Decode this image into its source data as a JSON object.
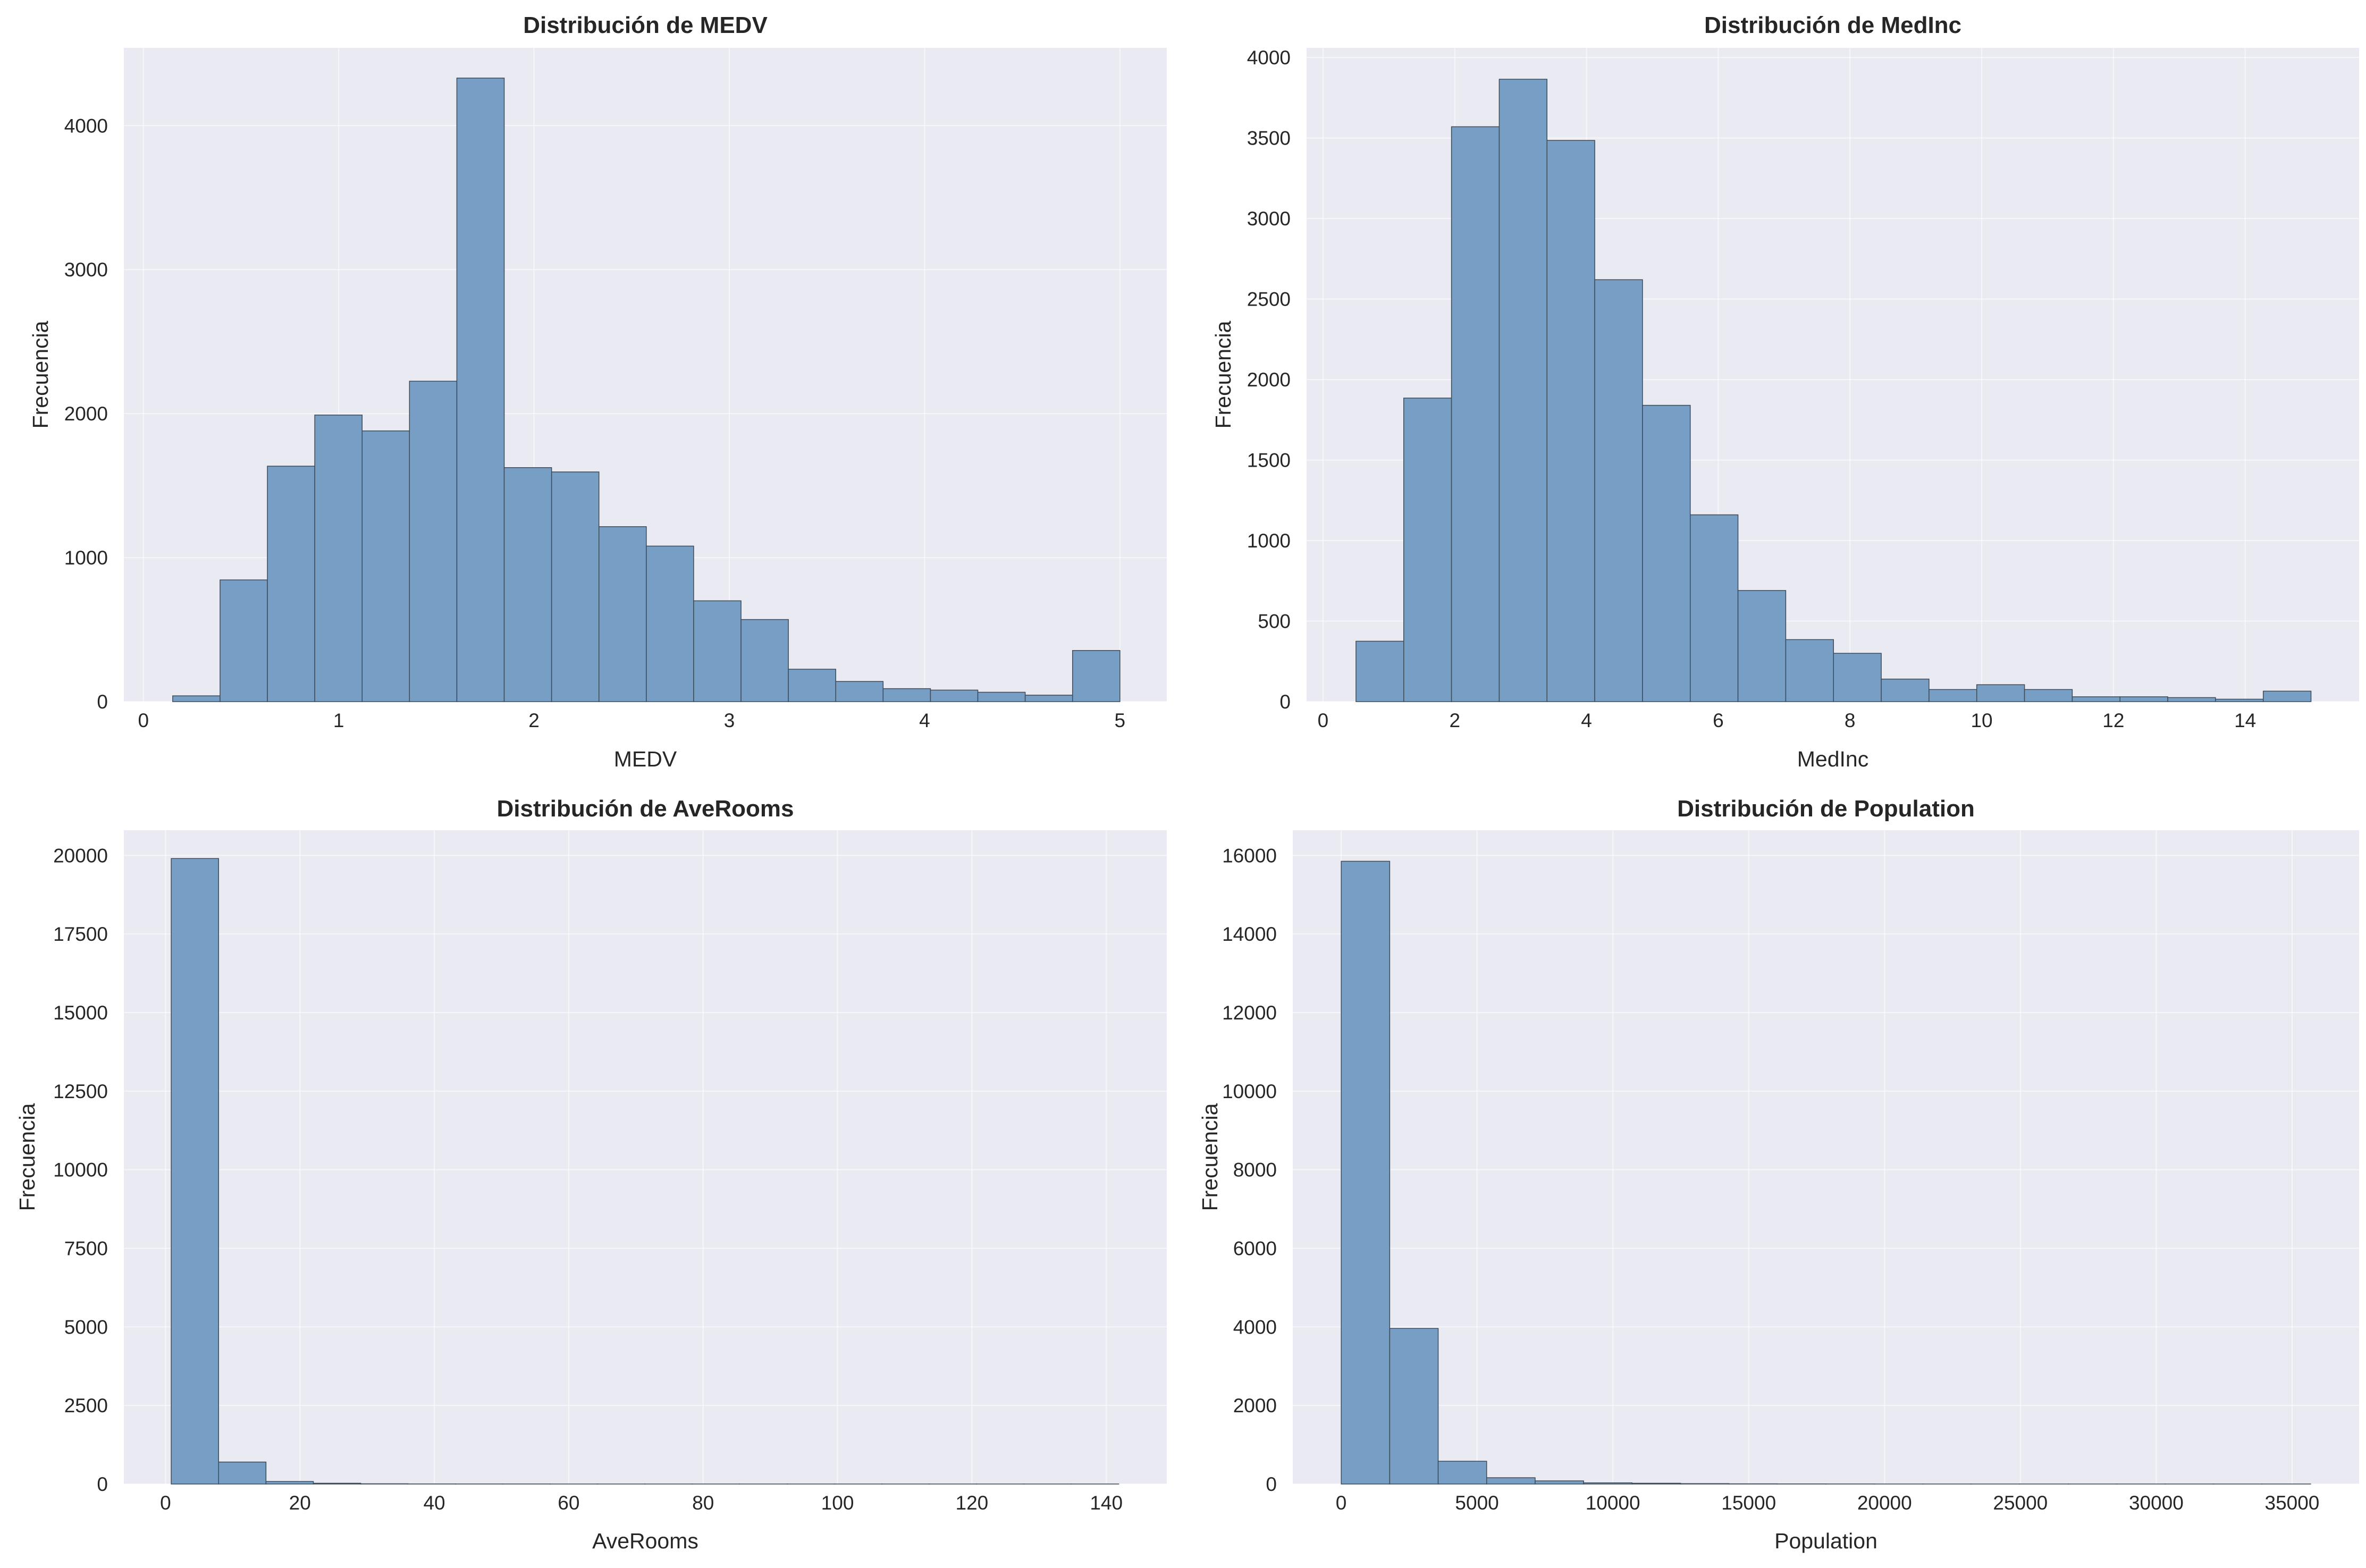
{
  "chart_data": [
    {
      "type": "bar",
      "title": "Distribución de MEDV",
      "xlabel": "MEDV",
      "ylabel": "Frecuencia",
      "bin_edges": [
        0.15,
        0.3925,
        0.635,
        0.8775,
        1.12,
        1.3625,
        1.605,
        1.8475,
        2.09,
        2.3325,
        2.575,
        2.8175,
        3.06,
        3.3025,
        3.545,
        3.7875,
        4.03,
        4.2725,
        4.515,
        4.7575,
        5.0
      ],
      "values": [
        40,
        845,
        1635,
        1990,
        1880,
        2225,
        4330,
        1625,
        1595,
        1215,
        1080,
        700,
        570,
        225,
        140,
        90,
        80,
        65,
        45,
        355
      ],
      "xlim": [
        -0.1,
        5.24
      ],
      "ylim": [
        0,
        4540
      ],
      "xticks": [
        0,
        1,
        2,
        3,
        4,
        5
      ],
      "yticks": [
        0,
        1000,
        2000,
        3000,
        4000
      ],
      "bar_color": "#779fc6",
      "edge_color": "#3d4a57",
      "background": "#eaeaf2"
    },
    {
      "type": "bar",
      "title": "Distribución de MedInc",
      "xlabel": "MedInc",
      "ylabel": "Frecuencia",
      "bin_edges": [
        0.5,
        1.225,
        1.95,
        2.675,
        3.4,
        4.125,
        4.85,
        5.575,
        6.3,
        7.025,
        7.75,
        8.475,
        9.2,
        9.925,
        10.65,
        11.375,
        12.1,
        12.825,
        13.55,
        14.275,
        15.0
      ],
      "values": [
        375,
        1885,
        3570,
        3865,
        3485,
        2620,
        1840,
        1160,
        690,
        385,
        300,
        140,
        75,
        105,
        75,
        30,
        30,
        25,
        15,
        65
      ],
      "xlim": [
        -0.25,
        15.73
      ],
      "ylim": [
        0,
        4060
      ],
      "xticks": [
        0,
        2,
        4,
        6,
        8,
        10,
        12,
        14
      ],
      "yticks": [
        0,
        500,
        1000,
        1500,
        2000,
        2500,
        3000,
        3500,
        4000
      ],
      "bar_color": "#779fc6",
      "edge_color": "#3d4a57",
      "background": "#eaeaf2"
    },
    {
      "type": "bar",
      "title": "Distribución de AveRooms",
      "xlabel": "AveRooms",
      "ylabel": "Frecuencia",
      "bin_edges": [
        0.85,
        7.9,
        14.95,
        22.0,
        29.05,
        36.1,
        43.15,
        50.2,
        57.25,
        64.3,
        71.35,
        78.4,
        85.45,
        92.5,
        99.55,
        106.6,
        113.65,
        120.7,
        127.75,
        134.8,
        141.85
      ],
      "values": [
        19900,
        700,
        80,
        25,
        8,
        3,
        2,
        2,
        1,
        1,
        1,
        1,
        1,
        1,
        1,
        1,
        1,
        1,
        1,
        1
      ],
      "xlim": [
        -6.2,
        149.0
      ],
      "ylim": [
        0,
        20800
      ],
      "xticks": [
        0,
        20,
        40,
        60,
        80,
        100,
        120,
        140
      ],
      "yticks": [
        0,
        2500,
        5000,
        7500,
        10000,
        12500,
        15000,
        17500,
        20000
      ],
      "bar_color": "#779fc6",
      "edge_color": "#3d4a57",
      "background": "#eaeaf2"
    },
    {
      "type": "bar",
      "title": "Distribución de Population",
      "xlabel": "Population",
      "ylabel": "Frecuencia",
      "bin_edges": [
        3,
        1787,
        3571,
        5355,
        7139,
        8923,
        10707,
        12491,
        14275,
        16059,
        17843,
        19627,
        21411,
        23195,
        24979,
        26763,
        28547,
        30331,
        32115,
        33899,
        35683
      ],
      "values": [
        15850,
        3960,
        580,
        160,
        80,
        30,
        20,
        10,
        5,
        3,
        2,
        1,
        1,
        1,
        1,
        1,
        1,
        1,
        1,
        1
      ],
      "xlim": [
        -1781,
        37466
      ],
      "ylim": [
        0,
        16640
      ],
      "xticks": [
        0,
        5000,
        10000,
        15000,
        20000,
        25000,
        30000,
        35000
      ],
      "yticks": [
        0,
        2000,
        4000,
        6000,
        8000,
        10000,
        12000,
        14000,
        16000
      ],
      "bar_color": "#779fc6",
      "edge_color": "#3d4a57",
      "background": "#eaeaf2"
    }
  ]
}
